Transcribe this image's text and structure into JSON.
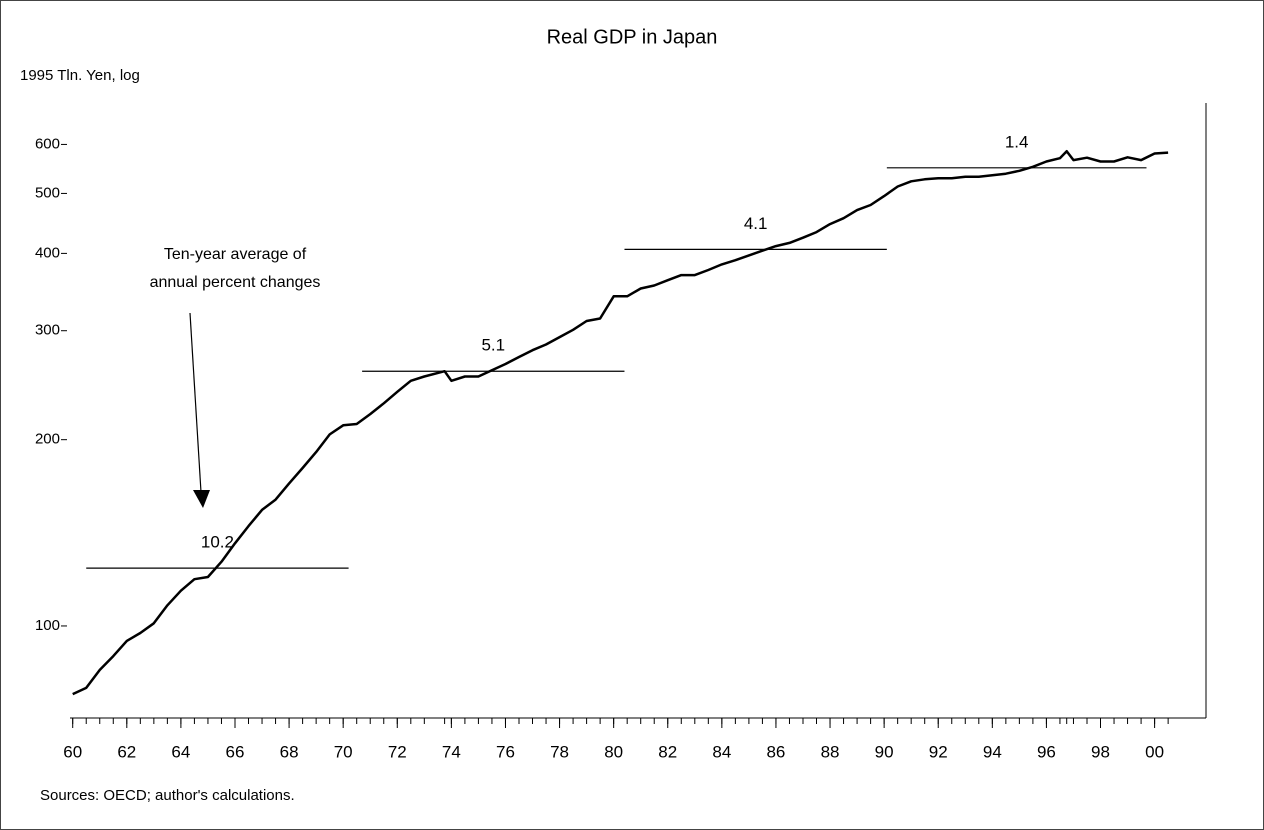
{
  "chart_data": {
    "type": "line",
    "title": "Real GDP in Japan",
    "y_label": "1995 Tln. Yen, log",
    "source": "Sources: OECD; author's calculations.",
    "annotation": [
      "Ten-year average of",
      "annual percent changes"
    ],
    "log_y": true,
    "color": "#000000",
    "xlim": [
      1959.9,
      2001.9
    ],
    "ylim": [
      71,
      700
    ],
    "xticks": [
      {
        "value": 1960,
        "label": "60"
      },
      {
        "value": 1962,
        "label": "62"
      },
      {
        "value": 1964,
        "label": "64"
      },
      {
        "value": 1966,
        "label": "66"
      },
      {
        "value": 1968,
        "label": "68"
      },
      {
        "value": 1970,
        "label": "70"
      },
      {
        "value": 1972,
        "label": "72"
      },
      {
        "value": 1974,
        "label": "74"
      },
      {
        "value": 1976,
        "label": "76"
      },
      {
        "value": 1978,
        "label": "78"
      },
      {
        "value": 1980,
        "label": "80"
      },
      {
        "value": 1982,
        "label": "82"
      },
      {
        "value": 1984,
        "label": "84"
      },
      {
        "value": 1986,
        "label": "86"
      },
      {
        "value": 1988,
        "label": "88"
      },
      {
        "value": 1990,
        "label": "90"
      },
      {
        "value": 1992,
        "label": "92"
      },
      {
        "value": 1994,
        "label": "94"
      },
      {
        "value": 1996,
        "label": "96"
      },
      {
        "value": 1998,
        "label": "98"
      },
      {
        "value": 2000,
        "label": "00"
      }
    ],
    "yticks": [
      100,
      200,
      300,
      400,
      500,
      600
    ],
    "x": [
      1960,
      1960.5,
      1961,
      1961.5,
      1962,
      1962.5,
      1963,
      1963.5,
      1964,
      1964.5,
      1965,
      1965.5,
      1966,
      1966.5,
      1967,
      1967.5,
      1968,
      1968.5,
      1969,
      1969.5,
      1970,
      1970.5,
      1971,
      1971.5,
      1972,
      1972.5,
      1973,
      1973.75,
      1974,
      1974.5,
      1975,
      1975.5,
      1976,
      1976.5,
      1977,
      1977.5,
      1978,
      1978.5,
      1979,
      1979.5,
      1980,
      1980.5,
      1981,
      1981.5,
      1982,
      1982.5,
      1983,
      1983.5,
      1984,
      1984.5,
      1985,
      1985.5,
      1986,
      1986.5,
      1987,
      1987.5,
      1988,
      1988.5,
      1989,
      1989.5,
      1990,
      1990.5,
      1991,
      1991.5,
      1992,
      1992.5,
      1993,
      1993.5,
      1994,
      1994.5,
      1995,
      1995.5,
      1996,
      1996.5,
      1996.75,
      1997,
      1997.5,
      1998,
      1998.5,
      1999,
      1999.5,
      2000,
      2000.5
    ],
    "values": [
      77.6,
      79.4,
      84.9,
      89.4,
      94.6,
      97.4,
      101,
      108,
      114,
      119,
      120,
      127,
      136,
      145,
      154,
      160,
      170,
      180,
      191,
      204,
      211,
      212,
      220,
      229,
      239,
      249,
      253,
      258,
      249,
      253,
      253,
      259,
      265,
      272,
      279,
      285,
      293,
      301,
      311,
      314,
      341,
      341,
      351,
      355,
      362,
      369,
      369,
      376,
      384,
      390,
      397,
      404,
      411,
      416,
      424,
      433,
      446,
      456,
      470,
      479,
      495,
      513,
      523,
      527,
      529,
      529,
      532,
      532,
      535,
      538,
      544,
      552,
      563,
      570,
      585,
      566,
      571,
      563,
      563,
      572,
      566,
      580,
      582
    ],
    "averages": [
      {
        "label": 10.2,
        "start": 1960.5,
        "end": 1970.2,
        "level": 124
      },
      {
        "label": 5.1,
        "start": 1970.7,
        "end": 1980.4,
        "level": 258
      },
      {
        "label": 4.1,
        "start": 1980.4,
        "end": 1990.1,
        "level": 406
      },
      {
        "label": 1.4,
        "start": 1990.1,
        "end": 1999.7,
        "level": 550
      }
    ]
  }
}
